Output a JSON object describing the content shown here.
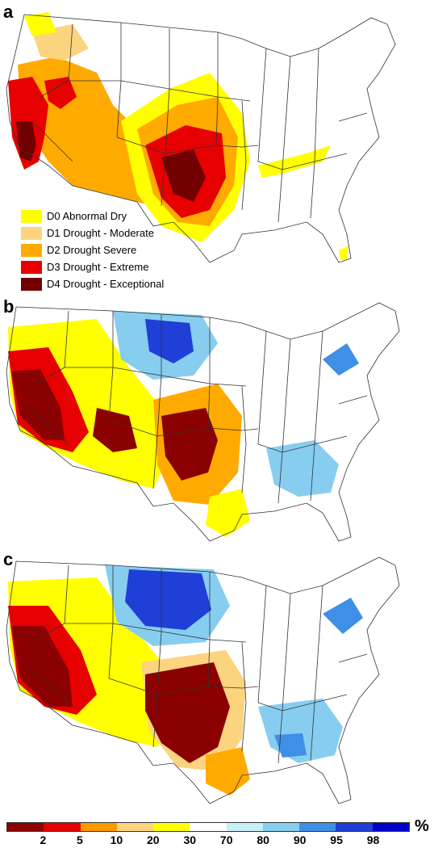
{
  "panels": [
    {
      "letter": "a"
    },
    {
      "letter": "b"
    },
    {
      "letter": "c"
    }
  ],
  "legend_a": [
    {
      "label": "D0 Abnormal Dry",
      "color": "#ffff00"
    },
    {
      "label": "D1 Drought - Moderate",
      "color": "#fcd37f"
    },
    {
      "label": "D2 Drought Severe",
      "color": "#ffaa00"
    },
    {
      "label": "D3 Drought - Extreme",
      "color": "#e60000"
    },
    {
      "label": "D4 Drought - Exceptional",
      "color": "#730000"
    }
  ],
  "colorbar": {
    "unit": "%",
    "segments": [
      "#8b0000",
      "#e60000",
      "#ff9900",
      "#fcd37f",
      "#ffff00",
      "#ffffff",
      "#c8f0f8",
      "#87cdf0",
      "#3f8fe6",
      "#1f3fd6",
      "#0000cc"
    ],
    "ticks": [
      "2",
      "5",
      "10",
      "20",
      "30",
      "70",
      "80",
      "90",
      "95",
      "98"
    ]
  },
  "colors": {
    "state_line": "#333333",
    "d0": "#ffff00",
    "d1": "#fcd37f",
    "d2": "#ffaa00",
    "d3": "#e60000",
    "d4": "#730000",
    "wet_light": "#c8f0f8",
    "wet_mid": "#87cdf0",
    "wet_strong": "#3f8fe6",
    "wet_deep": "#1f3fd6"
  }
}
